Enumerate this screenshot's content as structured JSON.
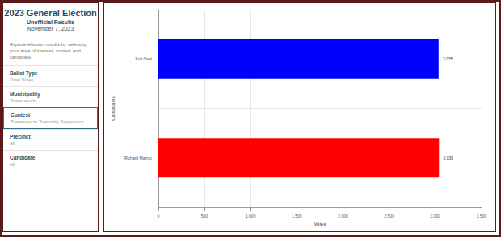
{
  "sidebar": {
    "title": "2023 General Election",
    "subtitle": "Unofficial Results",
    "date": "November 7, 2023",
    "description": "Explore election results by selecting your area of interest, contest and candidate.",
    "filters": [
      {
        "label": "Ballot Type",
        "value": "Total Votes"
      },
      {
        "label": "Municipality",
        "value": "Towamencin"
      },
      {
        "label": "Contest",
        "value": "Towamencin Township Supervisor",
        "selected": true
      },
      {
        "label": "Precinct",
        "value": "All"
      },
      {
        "label": "Candidate",
        "value": "All"
      }
    ]
  },
  "chart_data": {
    "type": "bar",
    "orientation": "horizontal",
    "categories": [
      "Kofi Osei",
      "Richard Marino"
    ],
    "values": [
      3035,
      3039
    ],
    "value_labels": [
      "3,035",
      "3,039"
    ],
    "colors": [
      "#0000ff",
      "#ff0000"
    ],
    "data_labels": true,
    "x_label": "Votes",
    "y_label": "Candidates",
    "xlim": [
      0,
      3500
    ],
    "xticks": [
      0,
      500,
      {
        "value": 1000,
        "label": "1,000"
      },
      {
        "value": 1500,
        "label": "1,500"
      },
      {
        "value": 2000,
        "label": "2,000"
      },
      {
        "value": 2500,
        "label": "2,500"
      },
      {
        "value": 3000,
        "label": "3,000"
      },
      {
        "value": 3500,
        "label": "3,500"
      }
    ],
    "grid": true
  }
}
